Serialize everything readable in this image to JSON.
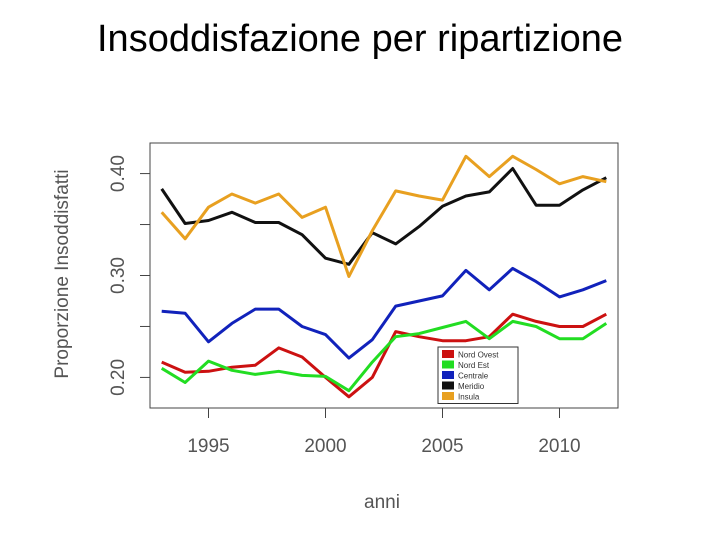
{
  "title": "Insoddisfazione per ripartizione",
  "chart_data": {
    "type": "line",
    "title": "Insoddisfazione per ripartizione",
    "xlabel": "anni",
    "ylabel": "Proporzione Insoddisfatti",
    "xlim": [
      1992.5,
      2012.5
    ],
    "ylim": [
      0.17,
      0.43
    ],
    "x_ticks": [
      1995,
      2000,
      2005,
      2010
    ],
    "y_ticks": [
      0.2,
      0.3,
      0.4
    ],
    "y_tick_labels": [
      "0.20",
      "0.30",
      "0.40"
    ],
    "grid": false,
    "legend_position": "bottom-right",
    "x": [
      1993,
      1994,
      1995,
      1996,
      1997,
      1998,
      1999,
      2000,
      2001,
      2002,
      2003,
      2004,
      2005,
      2006,
      2007,
      2008,
      2009,
      2010,
      2011,
      2012
    ],
    "series": [
      {
        "name": "Nord Ovest",
        "color": "#cc1111",
        "values": [
          0.215,
          0.205,
          0.206,
          0.21,
          0.212,
          0.229,
          0.22,
          0.2,
          0.181,
          0.2,
          0.245,
          0.24,
          0.236,
          0.236,
          0.24,
          0.262,
          0.255,
          0.25,
          0.25,
          0.262
        ]
      },
      {
        "name": "Nord Est",
        "color": "#22dd22",
        "values": [
          0.209,
          0.195,
          0.216,
          0.207,
          0.203,
          0.206,
          0.202,
          0.201,
          0.187,
          0.215,
          0.24,
          0.243,
          0.249,
          0.255,
          0.238,
          0.255,
          0.25,
          0.238,
          0.238,
          0.253
        ]
      },
      {
        "name": "Centrale",
        "color": "#1122bb",
        "values": [
          0.265,
          0.263,
          0.235,
          0.253,
          0.267,
          0.267,
          0.25,
          0.242,
          0.219,
          0.237,
          0.27,
          0.275,
          0.28,
          0.305,
          0.286,
          0.307,
          0.294,
          0.279,
          0.286,
          0.295
        ]
      },
      {
        "name": "Meridio",
        "color": "#111111",
        "values": [
          0.385,
          0.351,
          0.354,
          0.362,
          0.352,
          0.352,
          0.34,
          0.317,
          0.311,
          0.342,
          0.331,
          0.348,
          0.368,
          0.378,
          0.382,
          0.405,
          0.369,
          0.369,
          0.384,
          0.396
        ]
      },
      {
        "name": "Insula",
        "color": "#e8a020",
        "values": [
          0.362,
          0.336,
          0.367,
          0.38,
          0.371,
          0.38,
          0.357,
          0.367,
          0.299,
          0.344,
          0.383,
          0.378,
          0.374,
          0.417,
          0.397,
          0.417,
          0.404,
          0.39,
          0.397,
          0.392
        ]
      }
    ]
  }
}
